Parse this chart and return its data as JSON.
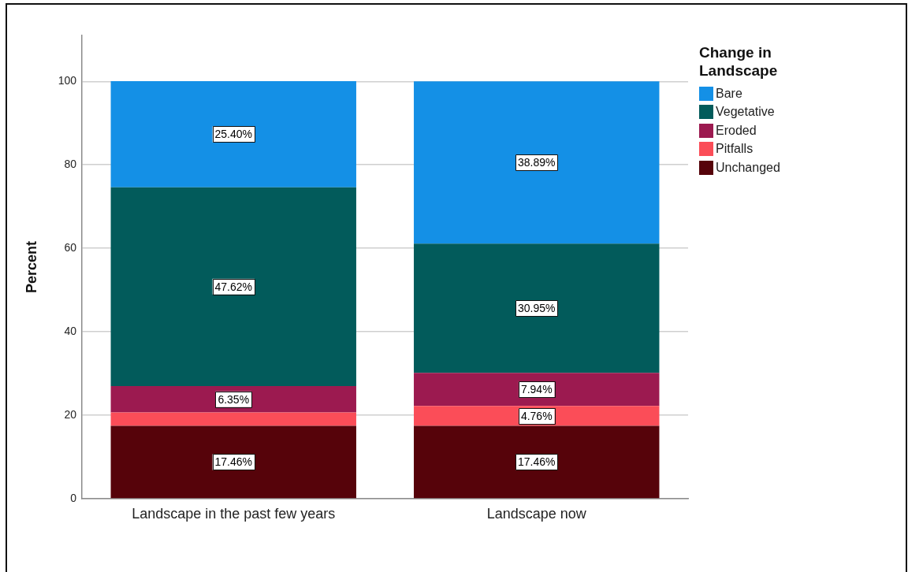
{
  "chart_data": {
    "type": "bar",
    "stacked": true,
    "categories": [
      "Landscape in the past few years",
      "Landscape now"
    ],
    "ylabel": "Percent",
    "legend_title": "Change in Landscape",
    "legend": "right",
    "grid": "y",
    "ylim": [
      0,
      111
    ],
    "yticks": [
      0,
      20,
      40,
      60,
      80,
      100
    ],
    "series": [
      {
        "name": "Unchanged",
        "color": "#56030a",
        "values": [
          17.46,
          17.46
        ],
        "value_labels": [
          "17.46%",
          "17.46%"
        ]
      },
      {
        "name": "Pitfalls",
        "color": "#fb4d58",
        "values": [
          3.2,
          4.76
        ],
        "value_labels": [
          null,
          "4.76%"
        ]
      },
      {
        "name": "Eroded",
        "color": "#9c1a50",
        "values": [
          6.35,
          7.94
        ],
        "value_labels": [
          "6.35%",
          "7.94%"
        ]
      },
      {
        "name": "Vegetative",
        "color": "#025b5b",
        "values": [
          47.62,
          30.95
        ],
        "value_labels": [
          "47.62%",
          "30.95%"
        ]
      },
      {
        "name": "Bare",
        "color": "#1490e6",
        "values": [
          25.4,
          38.89
        ],
        "value_labels": [
          "25.40%",
          "38.89%"
        ]
      }
    ]
  }
}
